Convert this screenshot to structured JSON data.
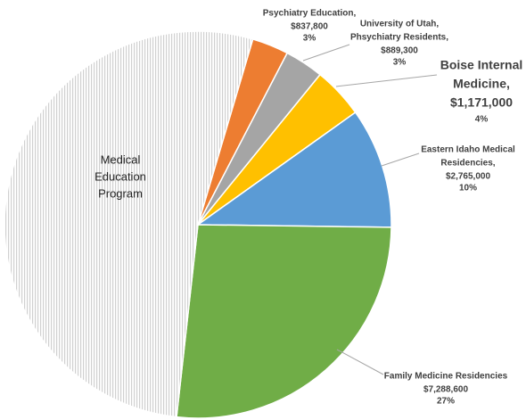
{
  "chart_data": {
    "type": "pie",
    "categories": [
      [
        "Psychiatry Education,"
      ],
      [
        "University of Utah,",
        "Phsychiatry Residents,"
      ],
      [
        "Boise Internal",
        "Medicine,"
      ],
      [
        "Eastern Idaho Medical",
        "Residencies,"
      ],
      [
        "Family Medicine Residencies"
      ],
      [
        "Medical",
        "Education",
        "Program"
      ]
    ],
    "values": [
      837800,
      889300,
      1171000,
      2765000,
      7288600,
      14500000
    ],
    "value_labels": [
      "$837,800",
      "$889,300",
      "$1,171,000",
      "$2,765,000",
      "$7,288,600",
      null
    ],
    "percent_labels": [
      "3%",
      "3%",
      "4%",
      "10%",
      "27%",
      null
    ],
    "colors": [
      "#ed7d31",
      "#a5a5a5",
      "#ffc000",
      "#5b9bd5",
      "#70ad47",
      "pattern"
    ]
  }
}
